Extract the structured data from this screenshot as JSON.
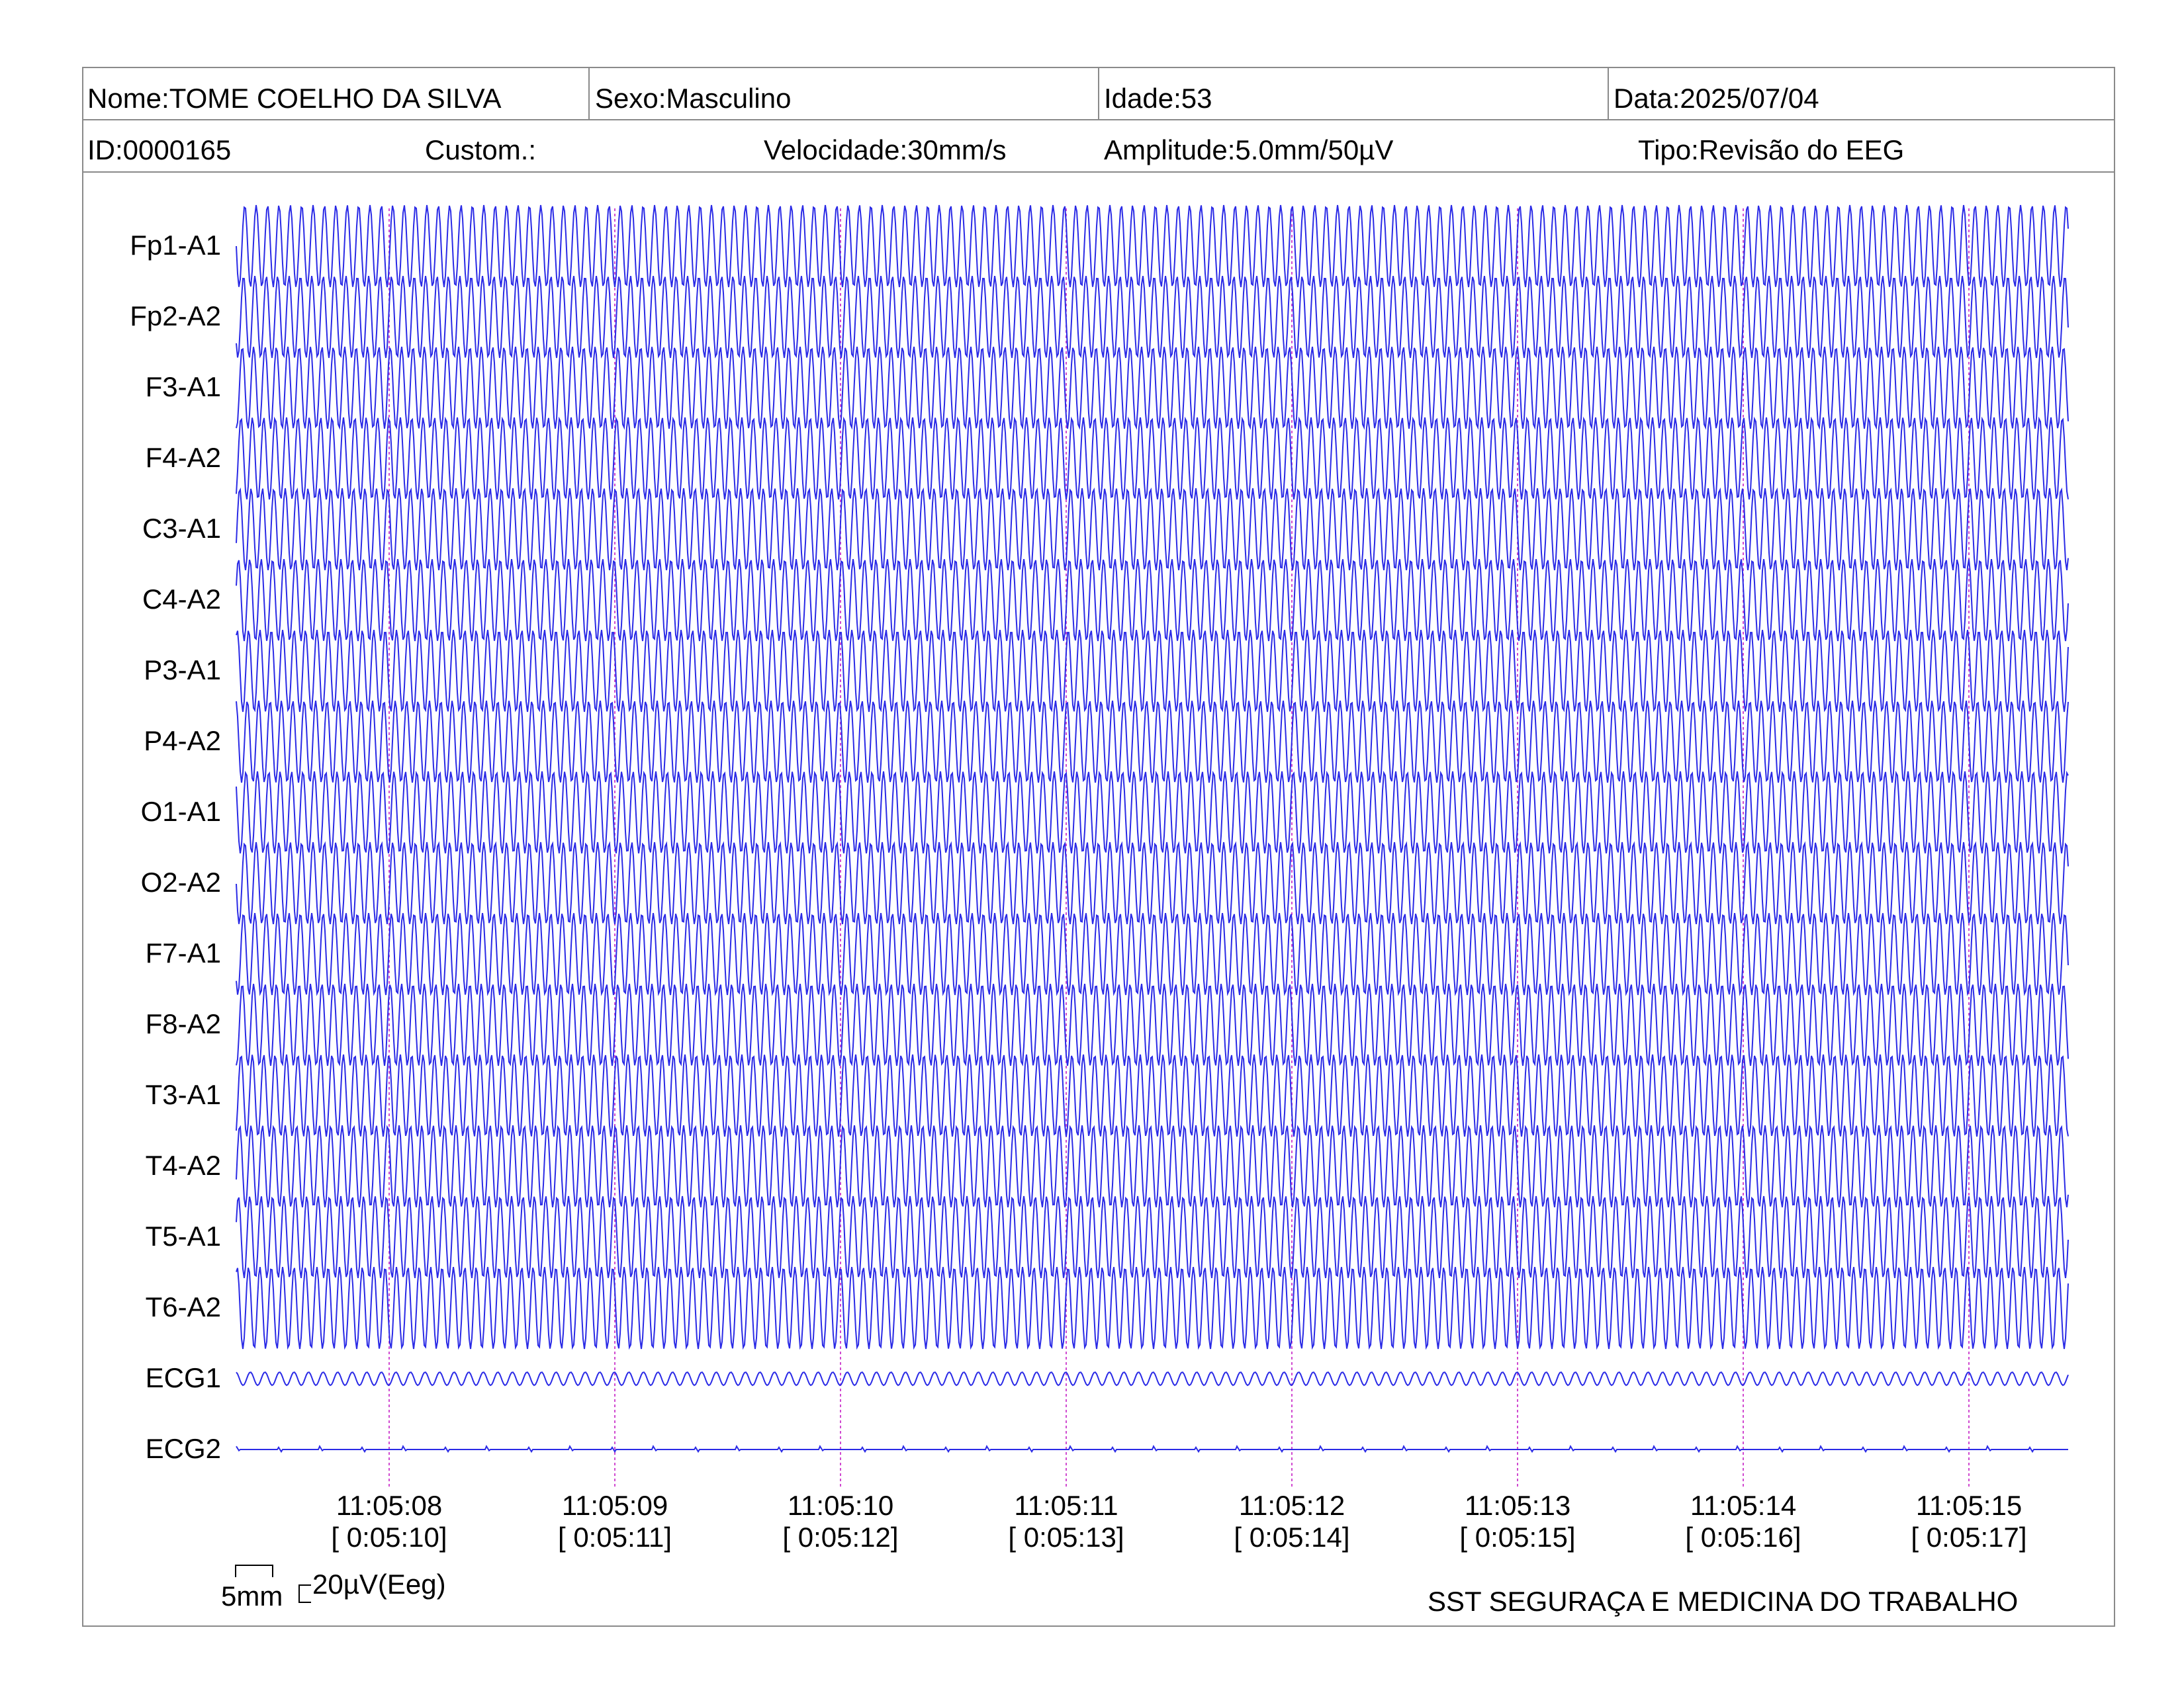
{
  "header": {
    "nome": "Nome:TOME COELHO DA SILVA",
    "sexo": "Sexo:Masculino",
    "idade": "Idade:53",
    "data": "Data:2025/07/04",
    "id": "ID:0000165",
    "custom": "Custom.:",
    "velocidade": "Velocidade:30mm/s",
    "amplitude": "Amplitude:5.0mm/50µV",
    "tipo": "Tipo:Revisão do EEG"
  },
  "channels": [
    "Fp1-A1",
    "Fp2-A2",
    "F3-A1",
    "F4-A2",
    "C3-A1",
    "C4-A2",
    "P3-A1",
    "P4-A2",
    "O1-A1",
    "O2-A2",
    "F7-A1",
    "F8-A2",
    "T3-A1",
    "T4-A2",
    "T5-A1",
    "T6-A2",
    "ECG1",
    "ECG2"
  ],
  "time_marks": [
    {
      "clock": "11:05:08",
      "elapsed": "[ 0:05:10]"
    },
    {
      "clock": "11:05:09",
      "elapsed": "[ 0:05:11]"
    },
    {
      "clock": "11:05:10",
      "elapsed": "[ 0:05:12]"
    },
    {
      "clock": "11:05:11",
      "elapsed": "[ 0:05:13]"
    },
    {
      "clock": "11:05:12",
      "elapsed": "[ 0:05:14]"
    },
    {
      "clock": "11:05:13",
      "elapsed": "[ 0:05:15]"
    },
    {
      "clock": "11:05:14",
      "elapsed": "[ 0:05:16]"
    },
    {
      "clock": "11:05:15",
      "elapsed": "[ 0:05:17]"
    }
  ],
  "scale": {
    "time_scale": "5mm",
    "amp_scale": "20µV(Eeg)"
  },
  "footer": {
    "organization": "SST SEGURAÇA E MEDICINA DO TRABALHO"
  },
  "colors": {
    "trace": "#2a2ae6",
    "marker": "#d04ad0",
    "grid": "#8a8a8a"
  }
}
